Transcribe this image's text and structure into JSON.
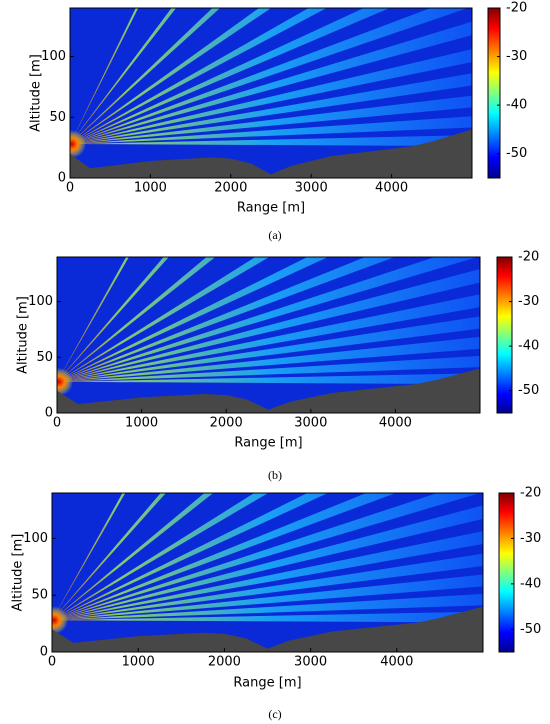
{
  "chart_data": [
    {
      "type": "heatmap",
      "caption": "(a)",
      "x_label": "Range [m]",
      "y_label": "Altitude [m]",
      "xlim": [
        0,
        5000
      ],
      "xticks": [
        0,
        1000,
        2000,
        3000,
        4000
      ],
      "ylim": [
        0,
        140
      ],
      "yticks": [
        0,
        50,
        100
      ],
      "colorbar": {
        "lim": [
          -55,
          -20
        ],
        "ticks": [
          -20,
          -30,
          -40,
          -50
        ],
        "colormap": "jet"
      },
      "terrain": {
        "color": "#474747",
        "x": [
          0,
          250,
          500,
          750,
          1000,
          1250,
          1500,
          1750,
          2000,
          2250,
          2500,
          2750,
          3000,
          3250,
          3500,
          3750,
          4000,
          4250,
          4500,
          4750,
          5000
        ],
        "altitude": [
          20,
          8,
          10,
          12,
          14,
          15,
          16,
          17,
          16,
          12,
          3,
          10,
          14,
          18,
          20,
          22,
          24,
          26,
          30,
          35,
          40
        ]
      }
    },
    {
      "type": "heatmap",
      "caption": "(b)",
      "x_label": "Range [m]",
      "y_label": "Altitude [m]",
      "xlim": [
        0,
        5000
      ],
      "xticks": [
        0,
        1000,
        2000,
        3000,
        4000
      ],
      "ylim": [
        0,
        140
      ],
      "yticks": [
        0,
        50,
        100
      ],
      "colorbar": {
        "lim": [
          -55,
          -20
        ],
        "ticks": [
          -20,
          -30,
          -40,
          -50
        ],
        "colormap": "jet"
      },
      "terrain": {
        "color": "#474747",
        "x": [
          0,
          250,
          500,
          750,
          1000,
          1250,
          1500,
          1750,
          2000,
          2250,
          2500,
          2750,
          3000,
          3250,
          3500,
          3750,
          4000,
          4250,
          4500,
          4750,
          5000
        ],
        "altitude": [
          20,
          8,
          10,
          12,
          14,
          15,
          16,
          17,
          16,
          12,
          3,
          10,
          14,
          18,
          20,
          22,
          24,
          26,
          30,
          35,
          40
        ]
      }
    },
    {
      "type": "heatmap",
      "caption": "(c)",
      "x_label": "Range [m]",
      "y_label": "Altitude [m]",
      "xlim": [
        0,
        5000
      ],
      "xticks": [
        0,
        1000,
        2000,
        3000,
        4000
      ],
      "ylim": [
        0,
        140
      ],
      "yticks": [
        0,
        50,
        100
      ],
      "colorbar": {
        "lim": [
          -55,
          -20
        ],
        "ticks": [
          -20,
          -30,
          -40,
          -50
        ],
        "colormap": "jet"
      },
      "terrain": {
        "color": "#474747",
        "x": [
          0,
          250,
          500,
          750,
          1000,
          1250,
          1500,
          1750,
          2000,
          2250,
          2500,
          2750,
          3000,
          3250,
          3500,
          3750,
          4000,
          4250,
          4500,
          4750,
          5000
        ],
        "altitude": [
          20,
          8,
          10,
          12,
          14,
          15,
          16,
          17,
          16,
          12,
          3,
          10,
          14,
          18,
          20,
          22,
          24,
          26,
          30,
          35,
          40
        ]
      }
    }
  ]
}
